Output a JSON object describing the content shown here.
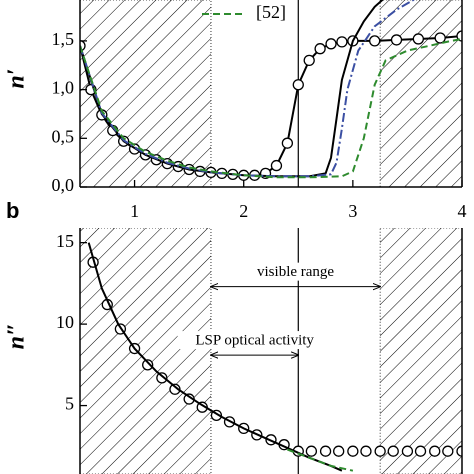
{
  "chart_data": [
    {
      "type": "line",
      "ylabel": "n′",
      "xlim": [
        0.5,
        4
      ],
      "ylim": [
        0,
        1.92
      ],
      "xticks": [
        1,
        2,
        3,
        4
      ],
      "yticks": [
        {
          "value": 0,
          "label": "0,0"
        },
        {
          "value": 0.5,
          "label": "0,5"
        },
        {
          "value": 1,
          "label": "1,0"
        },
        {
          "value": 1.5,
          "label": "1,5"
        }
      ],
      "grid": false,
      "legend": "top",
      "vline": 2.5,
      "shaded_spans": [
        [
          0.5,
          1.7
        ],
        [
          3.25,
          4
        ]
      ],
      "series": [
        {
          "color": "#000000",
          "style": "solid",
          "marker": "circle",
          "x": [
            0.5,
            0.6,
            0.7,
            0.8,
            0.9,
            1.0,
            1.1,
            1.2,
            1.3,
            1.4,
            1.5,
            1.6,
            1.7,
            1.8,
            1.9,
            2.0,
            2.1,
            2.2,
            2.3,
            2.4,
            2.5,
            2.6,
            2.7,
            2.8,
            2.9,
            3.0,
            3.2,
            3.4,
            3.6,
            3.8,
            4.0
          ],
          "values": [
            1.45,
            1.0,
            0.74,
            0.58,
            0.47,
            0.39,
            0.33,
            0.28,
            0.24,
            0.21,
            0.18,
            0.16,
            0.15,
            0.14,
            0.13,
            0.12,
            0.12,
            0.14,
            0.22,
            0.45,
            1.05,
            1.3,
            1.42,
            1.47,
            1.49,
            1.5,
            1.5,
            1.51,
            1.52,
            1.53,
            1.55
          ]
        },
        {
          "color": "#000000",
          "style": "solid",
          "x": [
            0.5,
            0.7,
            0.9,
            1.1,
            1.3,
            1.5,
            1.7,
            2.0,
            2.3,
            2.6,
            2.75,
            2.8,
            2.85,
            2.9,
            3.0,
            3.1,
            3.2,
            3.3
          ],
          "values": [
            1.45,
            0.75,
            0.47,
            0.33,
            0.24,
            0.18,
            0.15,
            0.12,
            0.11,
            0.11,
            0.14,
            0.3,
            0.7,
            1.1,
            1.5,
            1.7,
            1.85,
            1.95
          ]
        },
        {
          "color": "#3b4fa3",
          "style": "dashdot",
          "x": [
            0.5,
            0.7,
            0.9,
            1.1,
            1.3,
            1.5,
            1.7,
            2.0,
            2.3,
            2.6,
            2.8,
            2.85,
            2.9,
            2.95,
            3.05,
            3.2,
            3.4,
            3.6
          ],
          "values": [
            1.45,
            0.76,
            0.48,
            0.34,
            0.25,
            0.19,
            0.15,
            0.12,
            0.11,
            0.11,
            0.13,
            0.25,
            0.6,
            1.0,
            1.4,
            1.65,
            1.82,
            1.95
          ]
        },
        {
          "name": "[52]",
          "color": "#2e8b2e",
          "style": "dashed",
          "x": [
            0.5,
            0.7,
            0.9,
            1.1,
            1.3,
            1.5,
            1.7,
            2.0,
            2.3,
            2.6,
            2.9,
            3.0,
            3.1,
            3.2,
            3.3,
            3.5,
            3.7,
            3.9,
            4.0
          ],
          "values": [
            1.45,
            0.78,
            0.5,
            0.36,
            0.27,
            0.2,
            0.16,
            0.12,
            0.1,
            0.1,
            0.11,
            0.16,
            0.5,
            1.05,
            1.3,
            1.4,
            1.45,
            1.5,
            1.52
          ]
        }
      ]
    },
    {
      "type": "line",
      "ylabel": "n″",
      "panel_label": "b",
      "xlim": [
        0.5,
        4
      ],
      "ylim": [
        0.8,
        15.9
      ],
      "yticks": [
        5,
        10,
        15
      ],
      "grid": false,
      "vline": 2.5,
      "shaded_spans": [
        [
          0.5,
          1.7
        ],
        [
          3.25,
          4
        ]
      ],
      "annotations": [
        {
          "text": "visible range",
          "x": [
            1.7,
            3.25
          ],
          "y": 12.3
        },
        {
          "text": "LSP optical activity",
          "x": [
            1.7,
            2.5
          ],
          "y": 8.1
        }
      ],
      "series": [
        {
          "color": "#000000",
          "style": "none",
          "marker": "circle",
          "x": [
            0.62,
            0.75,
            0.87,
            1.0,
            1.12,
            1.25,
            1.37,
            1.5,
            1.62,
            1.75,
            1.87,
            2.0,
            2.12,
            2.25,
            2.37,
            2.5,
            2.62,
            2.75,
            2.87,
            3.0,
            3.12,
            3.25,
            3.37,
            3.5,
            3.62,
            3.75,
            3.87,
            4.0
          ],
          "values": [
            13.8,
            11.2,
            9.7,
            8.5,
            7.5,
            6.7,
            6.0,
            5.4,
            4.9,
            4.4,
            4.0,
            3.6,
            3.2,
            2.9,
            2.6,
            2.2,
            2.2,
            2.2,
            2.2,
            2.2,
            2.2,
            2.2,
            2.2,
            2.2,
            2.2,
            2.2,
            2.2,
            2.2
          ]
        },
        {
          "color": "#000000",
          "style": "solid",
          "x": [
            0.58,
            0.7,
            0.85,
            1.0,
            1.2,
            1.4,
            1.6,
            1.8,
            2.0,
            2.2,
            2.4,
            2.6,
            2.8,
            2.9
          ],
          "values": [
            15,
            12.2,
            10,
            8.5,
            7.1,
            6.0,
            5.1,
            4.3,
            3.6,
            3.0,
            2.4,
            1.8,
            1.3,
            1.0
          ]
        },
        {
          "color": "#2e8b2e",
          "style": "dashed",
          "x": [
            2.4,
            2.6,
            2.8,
            3.0
          ],
          "values": [
            2.3,
            1.8,
            1.3,
            1.0
          ]
        }
      ]
    }
  ]
}
